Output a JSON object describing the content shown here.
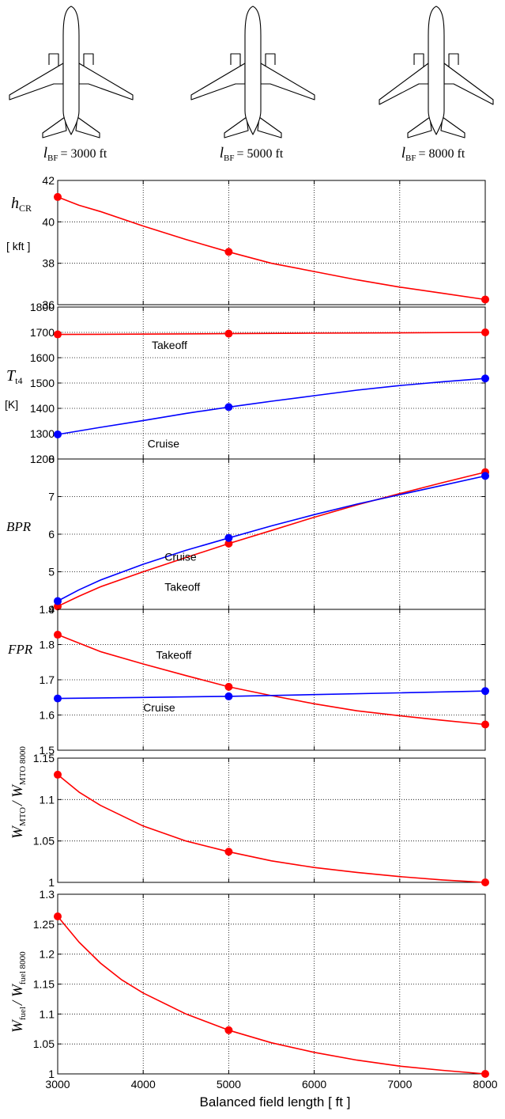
{
  "planes": [
    {
      "label": "l",
      "sub": "BF",
      "value": "= 3000 ft"
    },
    {
      "label": "l",
      "sub": "BF",
      "value": "= 5000 ft"
    },
    {
      "label": "l",
      "sub": "BF",
      "value": "= 8000 ft"
    }
  ],
  "xlabel": "Balanced field length  [ ft ]",
  "chart_data": [
    {
      "type": "line",
      "ylabel": {
        "main": "h",
        "sub": "CR",
        "unit": "[ kft ]"
      },
      "xlim": [
        3000,
        8000
      ],
      "ylim": [
        36,
        42
      ],
      "yticks": [
        36,
        38,
        40,
        42
      ],
      "series": [
        {
          "color": "#ff0000",
          "x": [
            3000,
            3250,
            3500,
            4000,
            4500,
            5000,
            5500,
            6000,
            6500,
            7000,
            7500,
            8000
          ],
          "y": [
            41.2,
            40.8,
            40.5,
            39.8,
            39.15,
            38.55,
            38.0,
            37.6,
            37.2,
            36.85,
            36.55,
            36.25
          ],
          "markers": [
            [
              3000,
              41.2
            ],
            [
              5000,
              38.55
            ],
            [
              8000,
              36.25
            ]
          ]
        }
      ],
      "annotations": []
    },
    {
      "type": "line",
      "ylabel": {
        "main": "T",
        "sub": "t4",
        "unit": "[K]"
      },
      "xlim": [
        3000,
        8000
      ],
      "ylim": [
        1200,
        1800
      ],
      "yticks": [
        1200,
        1300,
        1400,
        1500,
        1600,
        1700,
        1800
      ],
      "series": [
        {
          "name": "Takeoff",
          "color": "#ff0000",
          "x": [
            3000,
            4000,
            5000,
            6000,
            7000,
            8000
          ],
          "y": [
            1692,
            1693,
            1695,
            1697,
            1698,
            1700
          ],
          "markers": [
            [
              3000,
              1692
            ],
            [
              5000,
              1695
            ],
            [
              8000,
              1700
            ]
          ]
        },
        {
          "name": "Cruise",
          "color": "#0000ff",
          "x": [
            3000,
            3500,
            4000,
            4500,
            5000,
            5500,
            6000,
            6500,
            7000,
            7500,
            8000
          ],
          "y": [
            1297,
            1325,
            1352,
            1380,
            1405,
            1428,
            1450,
            1472,
            1490,
            1505,
            1518
          ],
          "markers": [
            [
              3000,
              1297
            ],
            [
              5000,
              1405
            ],
            [
              8000,
              1518
            ]
          ]
        }
      ],
      "annotations": [
        {
          "text": "Takeoff",
          "x": 4100,
          "y": 1635
        },
        {
          "text": "Cruise",
          "x": 4050,
          "y": 1245
        }
      ]
    },
    {
      "type": "line",
      "ylabel": {
        "main": "BPR",
        "sub": "",
        "unit": ""
      },
      "xlim": [
        3000,
        8000
      ],
      "ylim": [
        4,
        8
      ],
      "yticks": [
        4,
        5,
        6,
        7,
        8
      ],
      "series": [
        {
          "name": "Takeoff",
          "color": "#ff0000",
          "x": [
            3000,
            3250,
            3500,
            4000,
            4500,
            5000,
            5500,
            6000,
            6500,
            7000,
            7500,
            8000
          ],
          "y": [
            4.08,
            4.35,
            4.6,
            5.0,
            5.38,
            5.75,
            6.1,
            6.45,
            6.78,
            7.08,
            7.37,
            7.65
          ],
          "markers": [
            [
              3000,
              4.08
            ],
            [
              5000,
              5.75
            ],
            [
              8000,
              7.65
            ]
          ]
        },
        {
          "name": "Cruise",
          "color": "#0000ff",
          "x": [
            3000,
            3250,
            3500,
            4000,
            4500,
            5000,
            5500,
            6000,
            6500,
            7000,
            7500,
            8000
          ],
          "y": [
            4.22,
            4.52,
            4.78,
            5.2,
            5.57,
            5.9,
            6.22,
            6.52,
            6.8,
            7.05,
            7.3,
            7.55
          ],
          "markers": [
            [
              3000,
              4.22
            ],
            [
              5000,
              5.9
            ],
            [
              8000,
              7.55
            ]
          ]
        }
      ],
      "annotations": [
        {
          "text": "Cruise",
          "x": 4250,
          "y": 5.3
        },
        {
          "text": "Takeoff",
          "x": 4250,
          "y": 4.5
        }
      ]
    },
    {
      "type": "line",
      "ylabel": {
        "main": "FPR",
        "sub": "",
        "unit": ""
      },
      "xlim": [
        3000,
        8000
      ],
      "ylim": [
        1.5,
        1.9
      ],
      "yticks": [
        1.5,
        1.6,
        1.7,
        1.8,
        1.9
      ],
      "series": [
        {
          "name": "Takeoff",
          "color": "#ff0000",
          "x": [
            3000,
            3500,
            4000,
            4500,
            5000,
            5500,
            6000,
            6500,
            7000,
            7500,
            8000
          ],
          "y": [
            1.828,
            1.78,
            1.745,
            1.712,
            1.68,
            1.655,
            1.632,
            1.612,
            1.598,
            1.585,
            1.573
          ],
          "markers": [
            [
              3000,
              1.828
            ],
            [
              5000,
              1.68
            ],
            [
              8000,
              1.573
            ]
          ]
        },
        {
          "name": "Cruise",
          "color": "#0000ff",
          "x": [
            3000,
            4000,
            5000,
            6000,
            7000,
            8000
          ],
          "y": [
            1.647,
            1.65,
            1.653,
            1.658,
            1.663,
            1.668
          ],
          "markers": [
            [
              3000,
              1.647
            ],
            [
              5000,
              1.653
            ],
            [
              8000,
              1.668
            ]
          ]
        }
      ],
      "annotations": [
        {
          "text": "Takeoff",
          "x": 4150,
          "y": 1.76
        },
        {
          "text": "Cruise",
          "x": 4000,
          "y": 1.61
        }
      ]
    },
    {
      "type": "line",
      "ylabel": {
        "main": "W",
        "sub": "MTO",
        "slash": "/ W",
        "sub2": "MTO 8000",
        "unit": ""
      },
      "xlim": [
        3000,
        8000
      ],
      "ylim": [
        1,
        1.15
      ],
      "yticks": [
        1,
        1.05,
        1.1,
        1.15
      ],
      "series": [
        {
          "color": "#ff0000",
          "x": [
            3000,
            3250,
            3500,
            4000,
            4500,
            5000,
            5500,
            6000,
            6500,
            7000,
            7500,
            8000
          ],
          "y": [
            1.13,
            1.109,
            1.093,
            1.068,
            1.05,
            1.037,
            1.026,
            1.018,
            1.012,
            1.007,
            1.003,
            1.0
          ],
          "markers": [
            [
              3000,
              1.13
            ],
            [
              5000,
              1.037
            ],
            [
              8000,
              1.0
            ]
          ]
        }
      ],
      "annotations": []
    },
    {
      "type": "line",
      "ylabel": {
        "main": "W",
        "sub": "fuel",
        "slash": "/ W",
        "sub2": "fuel 8000",
        "unit": ""
      },
      "xlim": [
        3000,
        8000
      ],
      "ylim": [
        1,
        1.3
      ],
      "yticks": [
        1,
        1.05,
        1.1,
        1.15,
        1.2,
        1.25,
        1.3
      ],
      "xticks": [
        3000,
        4000,
        5000,
        6000,
        7000,
        8000
      ],
      "series": [
        {
          "color": "#ff0000",
          "x": [
            3000,
            3250,
            3500,
            3750,
            4000,
            4500,
            5000,
            5500,
            6000,
            6500,
            7000,
            7500,
            8000
          ],
          "y": [
            1.263,
            1.22,
            1.185,
            1.157,
            1.135,
            1.1,
            1.073,
            1.052,
            1.036,
            1.023,
            1.013,
            1.006,
            1.0
          ],
          "markers": [
            [
              3000,
              1.263
            ],
            [
              5000,
              1.073
            ],
            [
              8000,
              1.0
            ]
          ]
        }
      ],
      "annotations": []
    }
  ]
}
